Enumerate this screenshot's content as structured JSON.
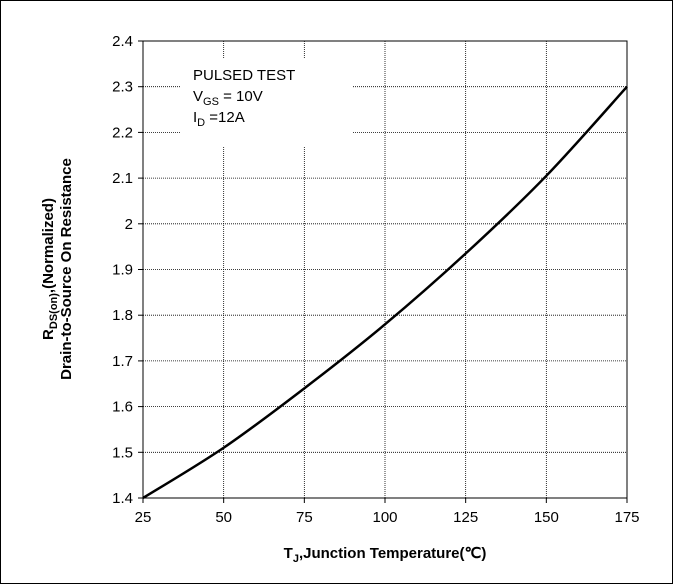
{
  "chart_data": {
    "type": "line",
    "title": "",
    "xlabel": {
      "main": "T",
      "sub": "J",
      "rest": ",Junction Temperature(℃)"
    },
    "ylabel": {
      "line1_main": "R",
      "line1_sub": "DS(on)",
      "line1_rest": ",(Normalized)",
      "line2": "Drain-to-Source On Resistance"
    },
    "xlim": [
      25,
      175
    ],
    "ylim": [
      1.4,
      2.4
    ],
    "x_ticks": [
      25,
      50,
      75,
      100,
      125,
      150,
      175
    ],
    "x_tick_labels": [
      "25",
      "50",
      "75",
      "100",
      "125",
      "150",
      "175"
    ],
    "y_ticks": [
      1.4,
      1.5,
      1.6,
      1.7,
      1.8,
      1.9,
      2.0,
      2.1,
      2.2,
      2.3,
      2.4
    ],
    "y_tick_labels": [
      "1.4",
      "1.5",
      "1.6",
      "1.7",
      "1.8",
      "1.9",
      "2",
      "2.1",
      "2.2",
      "2.3",
      "2.4"
    ],
    "grid": true,
    "series": [
      {
        "color": "#000000",
        "x": [
          25,
          50,
          75,
          100,
          125,
          150,
          175
        ],
        "y": [
          1.4,
          1.51,
          1.64,
          1.78,
          1.935,
          2.105,
          2.3
        ]
      }
    ],
    "annotation": {
      "line1": "PULSED TEST",
      "line2_main": "V",
      "line2_sub": "GS",
      "line2_rest": " = 10V",
      "line3_main": "I",
      "line3_sub": "D",
      "line3_rest": " =12A"
    }
  }
}
